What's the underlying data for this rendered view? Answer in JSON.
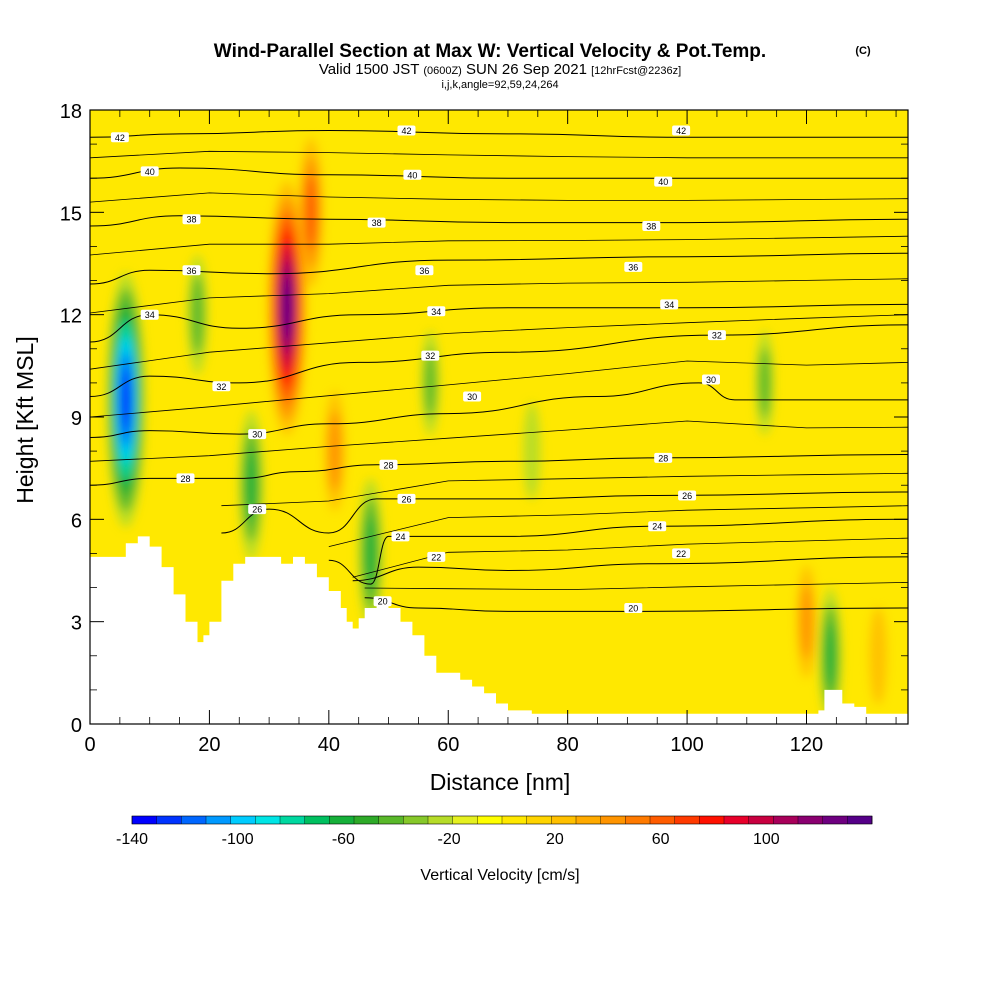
{
  "title": "Wind-Parallel Section at Max W: Vertical Velocity & Pot.Temp.",
  "title_mark": "(C)",
  "valid_prefix": "Valid 1500 JST",
  "valid_utc": "(0600Z)",
  "valid_date": "SUN 26 Sep 2021",
  "valid_fcst": "[12hrFcst@2236z]",
  "params": "i,j,k,angle=92,59,24,264",
  "chart_data": {
    "type": "heatmap",
    "xlabel": "Distance [nm]",
    "ylabel": "Height [Kft MSL]",
    "xlim": [
      0,
      137
    ],
    "ylim": [
      0,
      18
    ],
    "x_ticks": [
      0,
      20,
      40,
      60,
      80,
      100,
      120
    ],
    "y_ticks": [
      0,
      3,
      6,
      9,
      12,
      15,
      18
    ],
    "x_tick_labels": [
      "0",
      "20",
      "40",
      "60",
      "80",
      "100",
      "120"
    ],
    "y_tick_labels": [
      "0",
      "3",
      "6",
      "9",
      "12",
      "15",
      "18"
    ],
    "colorbar": {
      "label": "Vertical Velocity [cm/s]",
      "min": -140,
      "max": 140,
      "tick_values": [
        -140,
        -100,
        -60,
        -20,
        20,
        60,
        100
      ],
      "tick_labels": [
        "-140",
        "-100",
        "-60",
        "-20",
        "20",
        "60",
        "100"
      ],
      "colors": [
        "#0000ff",
        "#0033ff",
        "#0066ff",
        "#0099ff",
        "#00ccff",
        "#00e5e5",
        "#00d8a0",
        "#00c060",
        "#16b03a",
        "#2eaa28",
        "#59b82a",
        "#86c82a",
        "#b6dc28",
        "#e5f020",
        "#ffff00",
        "#ffe800",
        "#ffd400",
        "#ffc000",
        "#ffaa00",
        "#ff9400",
        "#ff7a00",
        "#ff5c00",
        "#ff3a00",
        "#ff1000",
        "#e8002a",
        "#c80040",
        "#a8005a",
        "#8a0070",
        "#6e0080",
        "#550088"
      ]
    },
    "terrain": [
      [
        0,
        4.9
      ],
      [
        5,
        4.9
      ],
      [
        6,
        5.3
      ],
      [
        8,
        5.5
      ],
      [
        10,
        5.2
      ],
      [
        12,
        4.6
      ],
      [
        14,
        3.8
      ],
      [
        16,
        3.0
      ],
      [
        18,
        2.4
      ],
      [
        19,
        2.6
      ],
      [
        20,
        3.0
      ],
      [
        22,
        4.2
      ],
      [
        24,
        4.7
      ],
      [
        26,
        4.9
      ],
      [
        30,
        4.9
      ],
      [
        32,
        4.7
      ],
      [
        34,
        4.9
      ],
      [
        36,
        4.7
      ],
      [
        38,
        4.3
      ],
      [
        40,
        3.9
      ],
      [
        42,
        3.4
      ],
      [
        43,
        3.0
      ],
      [
        44,
        2.8
      ],
      [
        45,
        3.1
      ],
      [
        46,
        3.4
      ],
      [
        48,
        3.6
      ],
      [
        50,
        3.4
      ],
      [
        52,
        3.0
      ],
      [
        54,
        2.6
      ],
      [
        56,
        2.0
      ],
      [
        58,
        1.5
      ],
      [
        60,
        1.5
      ],
      [
        62,
        1.3
      ],
      [
        64,
        1.1
      ],
      [
        66,
        0.9
      ],
      [
        68,
        0.6
      ],
      [
        70,
        0.4
      ],
      [
        74,
        0.3
      ],
      [
        120,
        0.3
      ],
      [
        122,
        0.4
      ],
      [
        123,
        1.0
      ],
      [
        125,
        1.0
      ],
      [
        126,
        0.6
      ],
      [
        128,
        0.5
      ],
      [
        130,
        0.3
      ],
      [
        137,
        0.3
      ]
    ],
    "velocity_features": [
      {
        "x": 6,
        "y": 9.5,
        "value": -130
      },
      {
        "x": 18,
        "y": 12.0,
        "value": -40
      },
      {
        "x": 27,
        "y": 7.0,
        "value": -60
      },
      {
        "x": 33,
        "y": 12.2,
        "value": 130
      },
      {
        "x": 37,
        "y": 15.0,
        "value": 60
      },
      {
        "x": 41,
        "y": 8.0,
        "value": 40
      },
      {
        "x": 47,
        "y": 5.0,
        "value": -60
      },
      {
        "x": 57,
        "y": 10.0,
        "value": -30
      },
      {
        "x": 74,
        "y": 8.0,
        "value": -25
      },
      {
        "x": 113,
        "y": 10.0,
        "value": -30
      },
      {
        "x": 124,
        "y": 2.0,
        "value": -50
      },
      {
        "x": 120,
        "y": 3.0,
        "value": 35
      },
      {
        "x": 132,
        "y": 2.0,
        "value": 25
      }
    ],
    "theta_contours": [
      {
        "level": 20,
        "label": "20",
        "points": [
          [
            46,
            3.7
          ],
          [
            55,
            3.4
          ],
          [
            70,
            3.3
          ],
          [
            90,
            3.3
          ],
          [
            137,
            3.4
          ]
        ]
      },
      {
        "level": 22,
        "label": "22",
        "points": [
          [
            44,
            4.2
          ],
          [
            55,
            4.6
          ],
          [
            70,
            4.5
          ],
          [
            95,
            4.7
          ],
          [
            137,
            4.9
          ]
        ]
      },
      {
        "level": 24,
        "label": "24",
        "points": [
          [
            40,
            4.8
          ],
          [
            47,
            4.1
          ],
          [
            50,
            5.5
          ],
          [
            70,
            5.5
          ],
          [
            95,
            5.8
          ],
          [
            137,
            6.0
          ]
        ]
      },
      {
        "level": 26,
        "label": "26",
        "points": [
          [
            22,
            5.6
          ],
          [
            30,
            6.3
          ],
          [
            40,
            5.6
          ],
          [
            48,
            6.6
          ],
          [
            70,
            6.6
          ],
          [
            95,
            6.7
          ],
          [
            137,
            6.8
          ]
        ]
      },
      {
        "level": 28,
        "label": "28",
        "points": [
          [
            0,
            7.0
          ],
          [
            10,
            7.2
          ],
          [
            25,
            7.2
          ],
          [
            35,
            7.4
          ],
          [
            48,
            7.6
          ],
          [
            70,
            7.7
          ],
          [
            95,
            7.8
          ],
          [
            137,
            7.9
          ]
        ]
      },
      {
        "level": 30,
        "label": "30",
        "points": [
          [
            0,
            8.4
          ],
          [
            10,
            8.6
          ],
          [
            25,
            8.5
          ],
          [
            40,
            8.8
          ],
          [
            60,
            9.1
          ],
          [
            85,
            9.6
          ],
          [
            102,
            10.0
          ],
          [
            108,
            9.5
          ],
          [
            137,
            9.5
          ]
        ]
      },
      {
        "level": 32,
        "label": "32",
        "points": [
          [
            0,
            9.6
          ],
          [
            10,
            10.2
          ],
          [
            25,
            10.0
          ],
          [
            45,
            10.6
          ],
          [
            70,
            10.9
          ],
          [
            105,
            11.4
          ],
          [
            137,
            11.7
          ]
        ]
      },
      {
        "level": 34,
        "label": "34",
        "points": [
          [
            0,
            11.2
          ],
          [
            10,
            12.0
          ],
          [
            25,
            11.6
          ],
          [
            45,
            12.0
          ],
          [
            70,
            12.2
          ],
          [
            100,
            12.2
          ],
          [
            137,
            12.3
          ]
        ]
      },
      {
        "level": 36,
        "label": "36",
        "points": [
          [
            0,
            12.9
          ],
          [
            10,
            13.3
          ],
          [
            30,
            13.2
          ],
          [
            60,
            13.6
          ],
          [
            100,
            13.7
          ],
          [
            137,
            13.8
          ]
        ]
      },
      {
        "level": 38,
        "label": "38",
        "points": [
          [
            0,
            14.6
          ],
          [
            15,
            14.9
          ],
          [
            40,
            14.8
          ],
          [
            70,
            14.7
          ],
          [
            100,
            14.7
          ],
          [
            137,
            14.8
          ]
        ]
      },
      {
        "level": 40,
        "label": "40",
        "points": [
          [
            0,
            16.0
          ],
          [
            15,
            16.3
          ],
          [
            40,
            16.1
          ],
          [
            70,
            16.0
          ],
          [
            100,
            16.0
          ],
          [
            137,
            16.0
          ]
        ]
      },
      {
        "level": 42,
        "label": "42",
        "points": [
          [
            0,
            17.2
          ],
          [
            15,
            17.3
          ],
          [
            40,
            17.4
          ],
          [
            70,
            17.3
          ],
          [
            100,
            17.2
          ],
          [
            137,
            17.2
          ]
        ]
      }
    ],
    "contour_labels": [
      {
        "text": "42",
        "x": 5,
        "y": 17.2
      },
      {
        "text": "42",
        "x": 53,
        "y": 17.4
      },
      {
        "text": "42",
        "x": 99,
        "y": 17.4
      },
      {
        "text": "40",
        "x": 10,
        "y": 16.2
      },
      {
        "text": "40",
        "x": 54,
        "y": 16.1
      },
      {
        "text": "40",
        "x": 96,
        "y": 15.9
      },
      {
        "text": "38",
        "x": 17,
        "y": 14.8
      },
      {
        "text": "38",
        "x": 48,
        "y": 14.7
      },
      {
        "text": "38",
        "x": 94,
        "y": 14.6
      },
      {
        "text": "36",
        "x": 17,
        "y": 13.3
      },
      {
        "text": "36",
        "x": 56,
        "y": 13.3
      },
      {
        "text": "36",
        "x": 91,
        "y": 13.4
      },
      {
        "text": "34",
        "x": 10,
        "y": 12.0
      },
      {
        "text": "34",
        "x": 58,
        "y": 12.1
      },
      {
        "text": "34",
        "x": 97,
        "y": 12.3
      },
      {
        "text": "32",
        "x": 22,
        "y": 9.9
      },
      {
        "text": "32",
        "x": 57,
        "y": 10.8
      },
      {
        "text": "32",
        "x": 105,
        "y": 11.4
      },
      {
        "text": "30",
        "x": 28,
        "y": 8.5
      },
      {
        "text": "30",
        "x": 64,
        "y": 9.6
      },
      {
        "text": "30",
        "x": 104,
        "y": 10.1
      },
      {
        "text": "28",
        "x": 16,
        "y": 7.2
      },
      {
        "text": "28",
        "x": 50,
        "y": 7.6
      },
      {
        "text": "28",
        "x": 96,
        "y": 7.8
      },
      {
        "text": "26",
        "x": 28,
        "y": 6.3
      },
      {
        "text": "26",
        "x": 53,
        "y": 6.6
      },
      {
        "text": "26",
        "x": 100,
        "y": 6.7
      },
      {
        "text": "24",
        "x": 52,
        "y": 5.5
      },
      {
        "text": "24",
        "x": 95,
        "y": 5.8
      },
      {
        "text": "22",
        "x": 58,
        "y": 4.9
      },
      {
        "text": "22",
        "x": 99,
        "y": 5.0
      },
      {
        "text": "20",
        "x": 49,
        "y": 3.6
      },
      {
        "text": "20",
        "x": 91,
        "y": 3.4
      }
    ]
  }
}
